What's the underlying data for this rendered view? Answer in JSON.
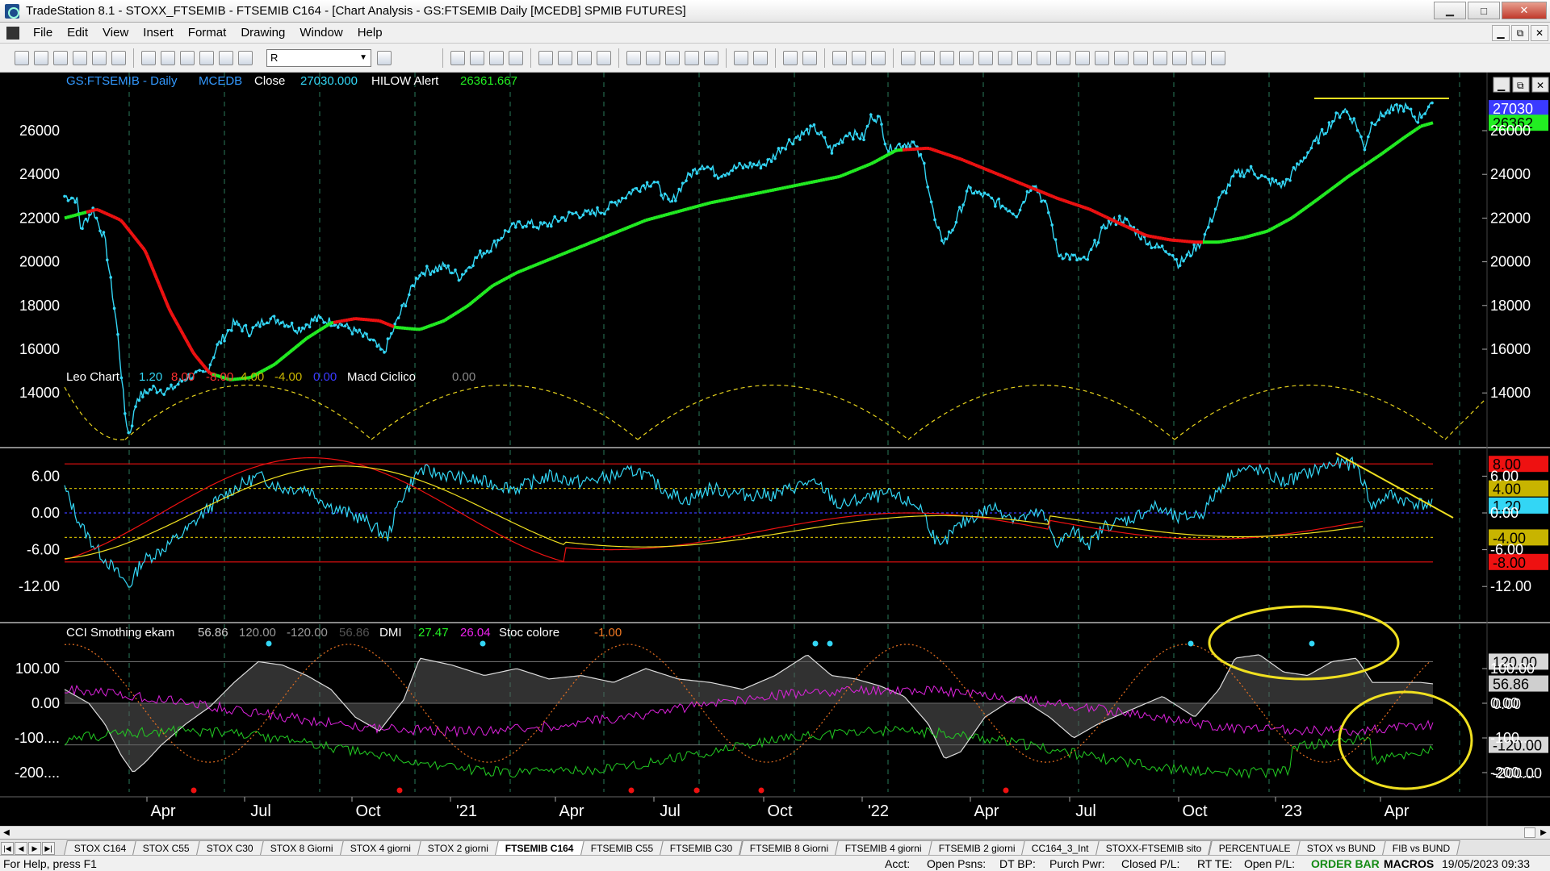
{
  "window": {
    "title": "TradeStation 8.1 - STOXX_FTSEMIB - FTSEMIB C164 - [Chart Analysis - GS:FTSEMIB  Daily  [MCEDB] SPMIB FUTURES]",
    "min": "▁",
    "max": "□",
    "close": "✕"
  },
  "menu": [
    "File",
    "Edit",
    "View",
    "Insert",
    "Format",
    "Drawing",
    "Window",
    "Help"
  ],
  "mdi": [
    "▁",
    "⧉",
    "✕"
  ],
  "toolbar": {
    "symbol_value": "R",
    "combo_arrow": "▼"
  },
  "price_panel": {
    "symbol": "GS:FTSEMIB - Daily",
    "source": "MCEDB",
    "close_label": "Close",
    "close_value": "27030.000",
    "alert_label": "HILOW Alert",
    "alert_value": "26361.667",
    "axis_labels": [
      "26000",
      "24000",
      "22000",
      "20000",
      "18000",
      "16000",
      "14000"
    ],
    "axis_values": [
      26000,
      24000,
      22000,
      20000,
      18000,
      16000,
      14000
    ],
    "badges": [
      {
        "text": "27030",
        "bg": "#3a3aff",
        "fg": "#ffffff",
        "value": 27030
      },
      {
        "text": "26362",
        "bg": "#22ee22",
        "fg": "#000000",
        "value": 26362
      }
    ],
    "colors": {
      "price": "#33d6f5",
      "ma_up": "#22ee22",
      "ma_down": "#ee1111",
      "cycle": "#e6d21c"
    }
  },
  "leo_panel": {
    "name": "Leo Chart",
    "values": [
      {
        "text": "1.20",
        "color": "#33d6f5"
      },
      {
        "text": "8.00",
        "color": "#ff3030"
      },
      {
        "text": "-8.00",
        "color": "#ff3030"
      },
      {
        "text": "4.00",
        "color": "#c8b400"
      },
      {
        "text": "-4.00",
        "color": "#c8b400"
      },
      {
        "text": "0.00",
        "color": "#3a3aff"
      }
    ],
    "macd_label": "Macd Ciclico",
    "macd_value": "0.00",
    "axis_labels": [
      "6.00",
      "0.00",
      "-6.00",
      "-12.00"
    ],
    "axis_values": [
      6,
      0,
      -6,
      -12
    ],
    "badges": [
      {
        "text": "8.00",
        "bg": "#ee1111",
        "fg": "#000000",
        "value": 8
      },
      {
        "text": "4.00",
        "bg": "#c8b400",
        "fg": "#000000",
        "value": 4
      },
      {
        "text": "1.20",
        "bg": "#33d6f5",
        "fg": "#000000",
        "value": 1.2
      },
      {
        "text": "-4.00",
        "bg": "#c8b400",
        "fg": "#000000",
        "value": -4
      },
      {
        "text": "-8.00",
        "bg": "#ee1111",
        "fg": "#000000",
        "value": -8
      }
    ]
  },
  "cci_panel": {
    "name": "CCI Smothing ekam",
    "values": [
      {
        "text": "56.86",
        "color": "#cfcfcf"
      },
      {
        "text": "120.00",
        "color": "#9a9a9a"
      },
      {
        "text": "-120.00",
        "color": "#9a9a9a"
      },
      {
        "text": "56.86",
        "color": "#555555"
      }
    ],
    "dmi_label": "DMI",
    "dmi_values": [
      {
        "text": "27.47",
        "color": "#22ee22"
      },
      {
        "text": "26.04",
        "color": "#ee22ee"
      }
    ],
    "stoc_label": "Stoc colore",
    "stoc_value": "-1.00",
    "axis_labels": [
      "100.00",
      "0.00",
      "-100....",
      "-200...."
    ],
    "axis_values": [
      100,
      0,
      -100,
      -200
    ],
    "badges": [
      {
        "text": "120.00",
        "bg": "#d8d8d8",
        "fg": "#000000",
        "value": 120
      },
      {
        "text": "56.86",
        "bg": "#cfcfcf",
        "fg": "#000000",
        "value": 56.86
      },
      {
        "text": "0.00",
        "bg": "#000000",
        "fg": "#ffffff",
        "value": 0
      },
      {
        "text": "-120.00",
        "bg": "#d8d8d8",
        "fg": "#000000",
        "value": -120
      },
      {
        "text": "-200.00",
        "bg": "#000000",
        "fg": "#ffffff",
        "value": -200
      }
    ]
  },
  "time_axis": [
    "Apr",
    "Jul",
    "Oct",
    "'21",
    "Apr",
    "Jul",
    "Oct",
    "'22",
    "Apr",
    "Jul",
    "Oct",
    "'23",
    "Apr"
  ],
  "tabs": [
    {
      "label": "STOX C164",
      "active": false
    },
    {
      "label": "STOX C55",
      "active": false
    },
    {
      "label": "STOX  C30",
      "active": false
    },
    {
      "label": "STOX  8 Giorni",
      "active": false
    },
    {
      "label": "STOX 4 giorni",
      "active": false
    },
    {
      "label": "STOX  2 giorni",
      "active": false
    },
    {
      "label": "FTSEMIB C164",
      "active": true
    },
    {
      "label": "FTSEMIB C55",
      "active": false
    },
    {
      "label": "FTSEMIB C30",
      "active": false
    },
    {
      "label": "FTSEMIB  8 Giorni",
      "active": false
    },
    {
      "label": "FTSEMIB  4 giorni",
      "active": false
    },
    {
      "label": "FTSEMIB  2 giorni",
      "active": false
    },
    {
      "label": "CC164_3_Int",
      "active": false
    },
    {
      "label": "STOXX-FTSEMIB sito",
      "active": false
    },
    {
      "label": "PERCENTUALE",
      "active": false
    },
    {
      "label": "STOX vs BUND",
      "active": false
    },
    {
      "label": "FIB vs BUND",
      "active": false
    }
  ],
  "status": {
    "help": "For Help, press F1",
    "acct": "Acct:",
    "open_psns": "Open Psns:",
    "dt_bp": "DT BP:",
    "purch_pwr": "Purch Pwr:",
    "closed_pl": "Closed P/L:",
    "rt_te": "RT TE:",
    "open_pl": "Open P/L:",
    "order_bar": "ORDER BAR",
    "macros": "MACROS",
    "datetime": "19/05/2023 09:33"
  }
}
